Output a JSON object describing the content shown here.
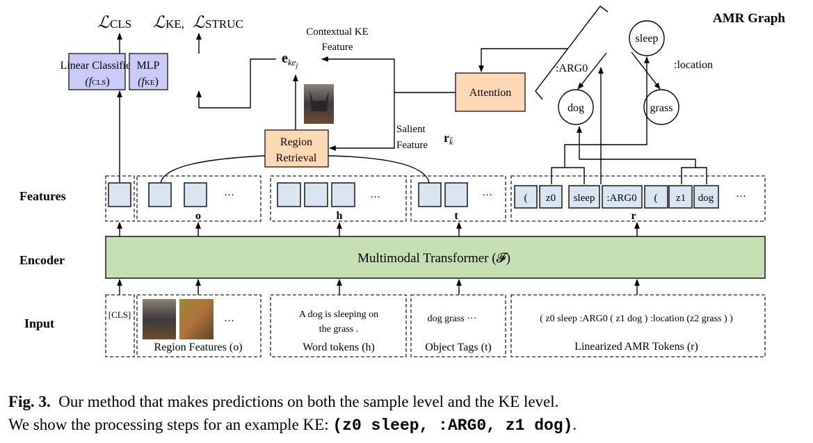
{
  "losses": {
    "cls": "ℒ",
    "cls_sub": "CLS",
    "ke": "ℒ",
    "ke_sub": "KE,",
    "struc": "ℒ",
    "struc_sub": "STRUC"
  },
  "heads": {
    "linear_classifier": {
      "line1": "Linear Classifier",
      "line2": "(f",
      "sub": "CLS",
      "close": ")"
    },
    "mlp": {
      "line1": "MLP",
      "line2": "(f",
      "sub": "KE",
      "close": ")"
    }
  },
  "contextual_ke": {
    "line1": "Contextual KE",
    "line2": "Feature",
    "symbol": "e",
    "sub": "ke",
    "subsub": "j"
  },
  "region_retrieval": {
    "line1": "Region",
    "line2": "Retrieval"
  },
  "salient": {
    "line1": "Salient",
    "line2": "Feature",
    "symbol": "r",
    "sub": "k̂"
  },
  "attention": "Attention",
  "amr_graph": {
    "title": "AMR Graph",
    "nodes": [
      "sleep",
      "dog",
      "grass"
    ],
    "edges": [
      ":ARG0",
      ":location"
    ]
  },
  "rows": {
    "features": "Features",
    "encoder": "Encoder",
    "input": "Input"
  },
  "feature_groups": {
    "o": "o",
    "h": "h",
    "t": "t",
    "r": "r",
    "ellipsis": "···"
  },
  "amr_tokens": [
    "(",
    "z0",
    "sleep",
    ":ARG0",
    "(",
    "z1",
    "dog"
  ],
  "encoder": "Multimodal Transformer (𝓕)",
  "inputs": {
    "cls": "[CLS]",
    "region_label": "Region Features (o)",
    "word_line1": "A dog is sleeping on",
    "word_line2": "the grass .",
    "word_label": "Word tokens (h)",
    "tags": "dog grass ···",
    "tags_label": "Object Tags (t)",
    "amr": "( z0 sleep :ARG0 ( z1 dog ) :location (z2 grass ) )",
    "amr_label": "Linearized AMR Tokens (r)"
  },
  "caption": {
    "fig": "Fig. 3.",
    "line1": "Our method that makes predictions on both the sample level and the KE level.",
    "line2": "We show the processing steps for an example KE:",
    "code": "(z0 sleep, :ARG0, z1 dog)",
    "end": "."
  },
  "colors": {
    "head": "#cbcbf8",
    "orange": "#fdd8b4",
    "encoder": "#c6e0b4",
    "feature": "#dae5f2"
  }
}
